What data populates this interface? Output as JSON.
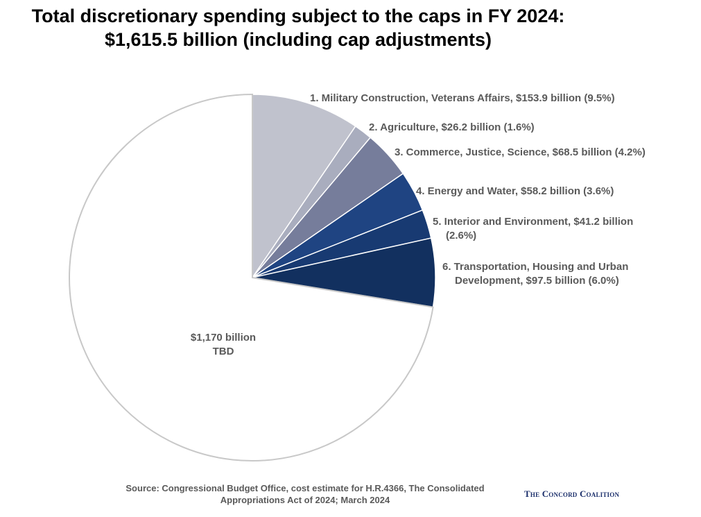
{
  "chart_data": {
    "type": "pie",
    "title_line1": "Total discretionary spending subject to the caps in FY 2024:",
    "title_line2": "$1,615.5 billion (including cap adjustments)",
    "slices": [
      {
        "name": "Military Construction, Veterans Affairs",
        "value": 153.9,
        "percent": 9.5,
        "color": "#c0c2cd",
        "label_lines": [
          "1. Military Construction, Veterans Affairs, $153.9 billion (9.5%)"
        ]
      },
      {
        "name": "Agriculture",
        "value": 26.2,
        "percent": 1.6,
        "color": "#a9adbe",
        "label_lines": [
          "2. Agriculture, $26.2 billion (1.6%)"
        ]
      },
      {
        "name": "Commerce, Justice, Science",
        "value": 68.5,
        "percent": 4.2,
        "color": "#767d9b",
        "label_lines": [
          "3. Commerce, Justice, Science, $68.5 billion (4.2%)"
        ]
      },
      {
        "name": "Energy and Water",
        "value": 58.2,
        "percent": 3.6,
        "color": "#1f4482",
        "label_lines": [
          "4. Energy and Water, $58.2 billion (3.6%)"
        ]
      },
      {
        "name": "Interior and Environment",
        "value": 41.2,
        "percent": 2.6,
        "color": "#183a72",
        "label_lines": [
          "5. Interior and Environment, $41.2 billion",
          "(2.6%)"
        ]
      },
      {
        "name": "Transportation, Housing and Urban Development",
        "value": 97.5,
        "percent": 6.0,
        "color": "#12305f",
        "label_lines": [
          "6. Transportation, Housing and Urban",
          "Development, $97.5 billion (6.0%)"
        ]
      },
      {
        "name": "TBD",
        "value": 1170,
        "percent": 72.4,
        "color": "#ffffff",
        "label_lines": [
          "$1,170 billion",
          "TBD"
        ]
      }
    ]
  },
  "source_line1": "Source: Congressional Budget Office, cost estimate for H.R.4366, The Consolidated",
  "source_line2": "Appropriations Act of 2024; March 2024",
  "logo_text": "The Concord Coalition"
}
